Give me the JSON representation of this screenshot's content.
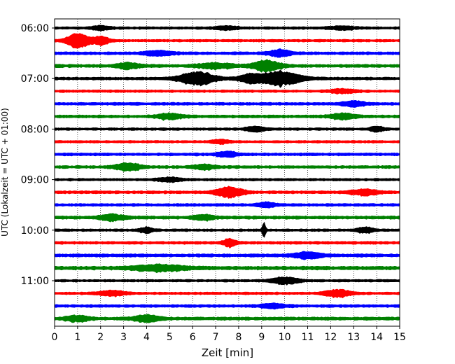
{
  "chart_data": {
    "type": "line",
    "title": "",
    "xlabel": "Zeit  [min]",
    "ylabel": "UTC (Lokalzeit = UTC + 01:00)",
    "xlim": [
      0,
      15
    ],
    "x_ticks": [
      0,
      1,
      2,
      3,
      4,
      5,
      6,
      7,
      8,
      9,
      10,
      11,
      12,
      13,
      14,
      15
    ],
    "y_tick_labels": [
      "06:00",
      "07:00",
      "08:00",
      "09:00",
      "10:00",
      "11:00"
    ],
    "grid": "vertical dotted",
    "minutes_per_trace": 15,
    "color_cycle": [
      "#000000",
      "#ff0000",
      "#0000ff",
      "#008000"
    ],
    "series": [
      {
        "start": "06:00",
        "base_amplitude": 0.18,
        "bursts": [
          {
            "t": 2.0,
            "amp": 0.25,
            "width": 0.4
          },
          {
            "t": 7.5,
            "amp": 0.2,
            "width": 0.5
          },
          {
            "t": 12.5,
            "amp": 0.2,
            "width": 0.6
          }
        ]
      },
      {
        "start": "06:15",
        "base_amplitude": 0.18,
        "bursts": [
          {
            "t": 1.0,
            "amp": 0.9,
            "width": 0.5
          },
          {
            "t": 2.0,
            "amp": 0.5,
            "width": 0.4
          }
        ]
      },
      {
        "start": "06:30",
        "base_amplitude": 0.2,
        "bursts": [
          {
            "t": 9.8,
            "amp": 0.45,
            "width": 0.5
          },
          {
            "t": 4.5,
            "amp": 0.3,
            "width": 0.6
          }
        ]
      },
      {
        "start": "06:45",
        "base_amplitude": 0.22,
        "bursts": [
          {
            "t": 9.2,
            "amp": 0.7,
            "width": 0.6
          },
          {
            "t": 3.2,
            "amp": 0.35,
            "width": 0.5
          },
          {
            "t": 7.0,
            "amp": 0.3,
            "width": 0.8
          }
        ]
      },
      {
        "start": "07:00",
        "base_amplitude": 0.2,
        "bursts": [
          {
            "t": 6.2,
            "amp": 0.85,
            "width": 0.8
          },
          {
            "t": 9.8,
            "amp": 0.95,
            "width": 0.9
          },
          {
            "t": 8.5,
            "amp": 0.5,
            "width": 0.5
          }
        ]
      },
      {
        "start": "07:15",
        "base_amplitude": 0.18,
        "bursts": [
          {
            "t": 12.5,
            "amp": 0.25,
            "width": 0.6
          }
        ]
      },
      {
        "start": "07:30",
        "base_amplitude": 0.2,
        "bursts": [
          {
            "t": 13.0,
            "amp": 0.3,
            "width": 0.5
          }
        ]
      },
      {
        "start": "07:45",
        "base_amplitude": 0.2,
        "bursts": [
          {
            "t": 5.0,
            "amp": 0.35,
            "width": 0.6
          },
          {
            "t": 12.5,
            "amp": 0.35,
            "width": 0.6
          }
        ]
      },
      {
        "start": "08:00",
        "base_amplitude": 0.18,
        "bursts": [
          {
            "t": 8.7,
            "amp": 0.35,
            "width": 0.4
          },
          {
            "t": 14.0,
            "amp": 0.35,
            "width": 0.3
          }
        ]
      },
      {
        "start": "08:15",
        "base_amplitude": 0.18,
        "bursts": [
          {
            "t": 7.2,
            "amp": 0.25,
            "width": 0.4
          }
        ]
      },
      {
        "start": "08:30",
        "base_amplitude": 0.2,
        "bursts": [
          {
            "t": 7.5,
            "amp": 0.3,
            "width": 0.5
          }
        ]
      },
      {
        "start": "08:45",
        "base_amplitude": 0.2,
        "bursts": [
          {
            "t": 3.2,
            "amp": 0.45,
            "width": 0.6
          },
          {
            "t": 6.5,
            "amp": 0.3,
            "width": 0.5
          }
        ]
      },
      {
        "start": "09:00",
        "base_amplitude": 0.18,
        "bursts": [
          {
            "t": 5.0,
            "amp": 0.25,
            "width": 0.5
          }
        ]
      },
      {
        "start": "09:15",
        "base_amplitude": 0.2,
        "bursts": [
          {
            "t": 7.6,
            "amp": 0.65,
            "width": 0.6
          },
          {
            "t": 13.5,
            "amp": 0.35,
            "width": 0.6
          }
        ]
      },
      {
        "start": "09:30",
        "base_amplitude": 0.2,
        "bursts": [
          {
            "t": 9.2,
            "amp": 0.3,
            "width": 0.4
          }
        ]
      },
      {
        "start": "09:45",
        "base_amplitude": 0.22,
        "bursts": [
          {
            "t": 2.5,
            "amp": 0.35,
            "width": 0.6
          },
          {
            "t": 6.5,
            "amp": 0.3,
            "width": 0.5
          }
        ]
      },
      {
        "start": "10:00",
        "base_amplitude": 0.18,
        "bursts": [
          {
            "t": 9.1,
            "amp": 1.1,
            "width": 0.08
          },
          {
            "t": 4.0,
            "amp": 0.35,
            "width": 0.3
          },
          {
            "t": 13.5,
            "amp": 0.35,
            "width": 0.4
          }
        ]
      },
      {
        "start": "10:15",
        "base_amplitude": 0.2,
        "bursts": [
          {
            "t": 7.6,
            "amp": 0.5,
            "width": 0.3
          }
        ]
      },
      {
        "start": "10:30",
        "base_amplitude": 0.22,
        "bursts": [
          {
            "t": 11.0,
            "amp": 0.4,
            "width": 0.6
          }
        ]
      },
      {
        "start": "10:45",
        "base_amplitude": 0.25,
        "bursts": [
          {
            "t": 4.5,
            "amp": 0.35,
            "width": 1.2
          }
        ]
      },
      {
        "start": "11:00",
        "base_amplitude": 0.18,
        "bursts": [
          {
            "t": 10.0,
            "amp": 0.45,
            "width": 0.6
          }
        ]
      },
      {
        "start": "11:15",
        "base_amplitude": 0.18,
        "bursts": [
          {
            "t": 2.5,
            "amp": 0.35,
            "width": 0.6
          },
          {
            "t": 12.3,
            "amp": 0.45,
            "width": 0.6
          }
        ]
      },
      {
        "start": "11:30",
        "base_amplitude": 0.2,
        "bursts": [
          {
            "t": 9.5,
            "amp": 0.25,
            "width": 0.6
          }
        ]
      },
      {
        "start": "11:45",
        "base_amplitude": 0.22,
        "bursts": [
          {
            "t": 4.0,
            "amp": 0.4,
            "width": 0.6
          },
          {
            "t": 1.0,
            "amp": 0.35,
            "width": 0.5
          }
        ]
      }
    ]
  }
}
